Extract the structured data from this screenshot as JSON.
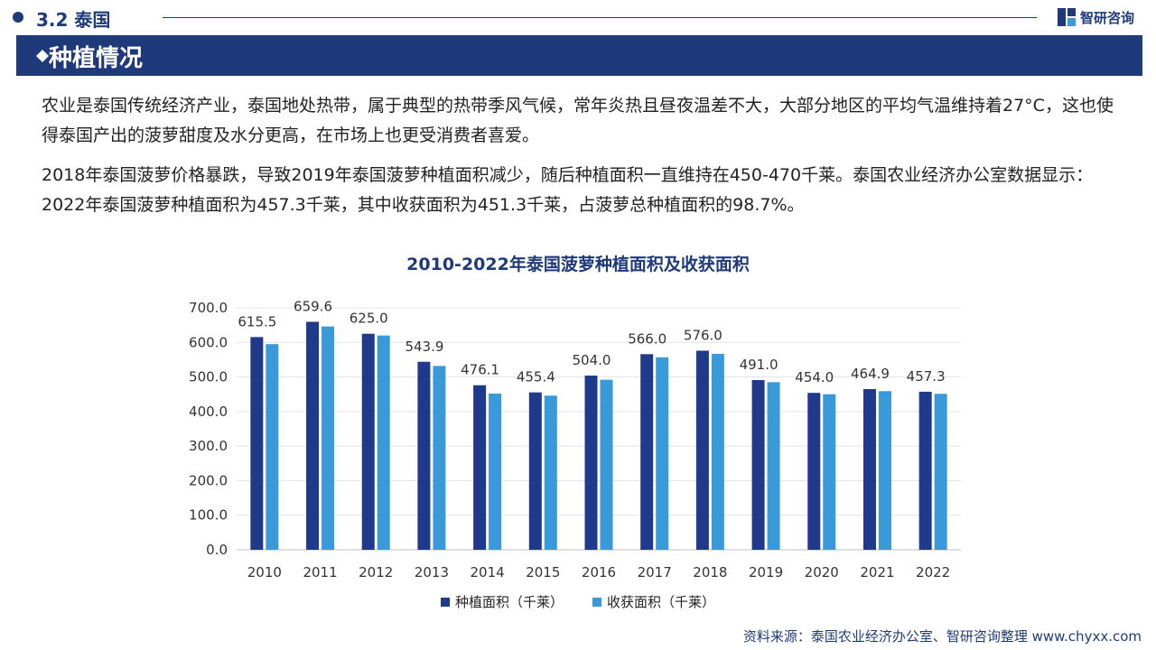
{
  "header": {
    "section_label": "3.2 泰国",
    "logo_text": "智研咨询"
  },
  "band": {
    "title": "种植情况"
  },
  "body": {
    "paragraph1": "农业是泰国传统经济产业，泰国地处热带，属于典型的热带季风气候，常年炎热且昼夜温差不大，大部分地区的平均气温维持着27°C，这也使得泰国产出的菠萝甜度及水分更高，在市场上也更受消费者喜爱。",
    "paragraph2": "2018年泰国菠萝价格暴跌，导致2019年泰国菠萝种植面积减少，随后种植面积一直维持在450-470千莱。泰国农业经济办公室数据显示：2022年泰国菠萝种植面积为457.3千莱，其中收获面积为451.3千莱，占菠萝总种植面积的98.7%。"
  },
  "chart_data": {
    "type": "bar",
    "title": "2010-2022年泰国菠萝种植面积及收获面积",
    "categories": [
      "2010",
      "2011",
      "2012",
      "2013",
      "2014",
      "2015",
      "2016",
      "2017",
      "2018",
      "2019",
      "2020",
      "2021",
      "2022"
    ],
    "series": [
      {
        "name": "种植面积（千莱）",
        "color": "#1f3a8a",
        "values": [
          615.5,
          659.6,
          625.0,
          543.9,
          476.1,
          455.4,
          504.0,
          566.0,
          576.0,
          491.0,
          454.0,
          464.9,
          457.3
        ],
        "labels": [
          "615.5",
          "659.6",
          "625.0",
          "543.9",
          "476.1",
          "455.4",
          "504.0",
          "566.0",
          "576.0",
          "491.0",
          "454.0",
          "464.9",
          "457.3"
        ]
      },
      {
        "name": "收获面积（千莱）",
        "color": "#3a9ad9",
        "values": [
          595,
          646,
          620,
          532,
          452,
          446,
          492,
          557,
          567,
          485,
          450,
          459,
          451.3
        ]
      }
    ],
    "ylim": [
      0,
      700
    ],
    "yticks": [
      "0.0",
      "100.0",
      "200.0",
      "300.0",
      "400.0",
      "500.0",
      "600.0",
      "700.0"
    ],
    "grid": true,
    "legend": "bottom"
  },
  "footer": {
    "source": "资料来源：泰国农业经济办公室、智研咨询整理  www.chyxx.com"
  }
}
